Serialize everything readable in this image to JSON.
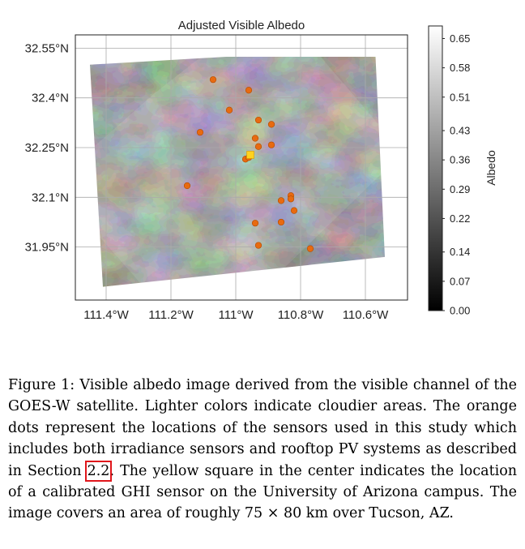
{
  "chart_data": {
    "type": "heatmap",
    "title": "Adjusted Visible Albedo",
    "xlabel": "",
    "ylabel": "",
    "xlim": [
      -111.495,
      -110.47
    ],
    "ylim": [
      31.79,
      32.59
    ],
    "x_ticks": [
      {
        "value": -111.4,
        "label": "111.4°W"
      },
      {
        "value": -111.2,
        "label": "111.2°W"
      },
      {
        "value": -111.0,
        "label": "111°W"
      },
      {
        "value": -110.8,
        "label": "110.8°W"
      },
      {
        "value": -110.6,
        "label": "110.6°W"
      }
    ],
    "y_ticks": [
      {
        "value": 32.55,
        "label": "32.55°N"
      },
      {
        "value": 32.4,
        "label": "32.4°N"
      },
      {
        "value": 32.25,
        "label": "32.25°N"
      },
      {
        "value": 32.1,
        "label": "32.1°N"
      },
      {
        "value": 31.95,
        "label": "31.95°N"
      }
    ],
    "grid": true,
    "colorbar": {
      "label": "Albedo",
      "range": [
        0.0,
        0.68
      ],
      "colormap": "grayscale",
      "ticks": [
        "0.00",
        "0.07",
        "0.14",
        "0.22",
        "0.29",
        "0.36",
        "0.43",
        "0.51",
        "0.58",
        "0.65"
      ]
    },
    "image_corners": [
      {
        "lon": -111.45,
        "lat": 32.5
      },
      {
        "lon": -110.57,
        "lat": 32.55
      },
      {
        "lon": -110.54,
        "lat": 31.92
      },
      {
        "lon": -111.41,
        "lat": 31.83
      }
    ],
    "sensors": [
      {
        "lon": -111.07,
        "lat": 32.455
      },
      {
        "lon": -110.96,
        "lat": 32.423
      },
      {
        "lon": -111.02,
        "lat": 32.363
      },
      {
        "lon": -110.93,
        "lat": 32.333
      },
      {
        "lon": -110.89,
        "lat": 32.32
      },
      {
        "lon": -111.11,
        "lat": 32.296
      },
      {
        "lon": -110.94,
        "lat": 32.278
      },
      {
        "lon": -110.93,
        "lat": 32.253
      },
      {
        "lon": -110.89,
        "lat": 32.258
      },
      {
        "lon": -110.97,
        "lat": 32.215
      },
      {
        "lon": -110.96,
        "lat": 32.22
      },
      {
        "lon": -111.15,
        "lat": 32.135
      },
      {
        "lon": -110.83,
        "lat": 32.105
      },
      {
        "lon": -110.83,
        "lat": 32.095
      },
      {
        "lon": -110.86,
        "lat": 32.09
      },
      {
        "lon": -110.82,
        "lat": 32.06
      },
      {
        "lon": -110.94,
        "lat": 32.022
      },
      {
        "lon": -110.86,
        "lat": 32.025
      },
      {
        "lon": -110.93,
        "lat": 31.955
      },
      {
        "lon": -110.77,
        "lat": 31.945
      }
    ],
    "calibrated_sensor": {
      "lon": -110.955,
      "lat": 32.228
    },
    "colors": {
      "sensor": "#e86a10",
      "calibrated_sensor": "#ffd21f",
      "grid": "#aaaaaa"
    }
  },
  "caption": {
    "part1": "Figure 1: Visible albedo image derived from the visible channel of the GOES-W satellite. Lighter colors indicate cloudier areas. The orange dots represent the locations of the sensors used in this study which includes both irradiance sensors and rooftop PV systems as described in Section ",
    "ref": "2.2",
    "part2": ". The yellow square in the center indicates the location of a calibrated GHI sensor on the University of Arizona campus. The image covers an area of roughly 75 × 80 km over Tucson, AZ."
  }
}
